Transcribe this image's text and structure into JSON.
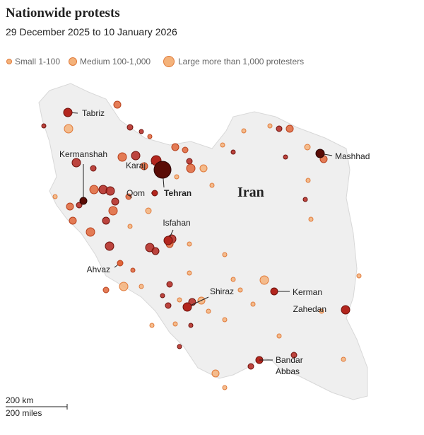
{
  "header": {
    "title": "Nationwide protests",
    "subtitle": "29 December 2025 to 10 January 2026"
  },
  "legend": [
    "Small 1-100",
    "Medium 100-1,000",
    "Large more than 1,000 protesters"
  ],
  "map": {
    "country": "Iran",
    "cities": [
      "Tabriz",
      "Kermanshah",
      "Karaj",
      "Qom",
      "Tehran",
      "Isfahan",
      "Ahvaz",
      "Shiraz",
      "Kerman",
      "Zahedan",
      "Mashhad"
    ],
    "bandar_abbas": [
      "Bandar",
      "Abbas"
    ]
  },
  "scale": [
    "200 km",
    "200 miles"
  ]
}
